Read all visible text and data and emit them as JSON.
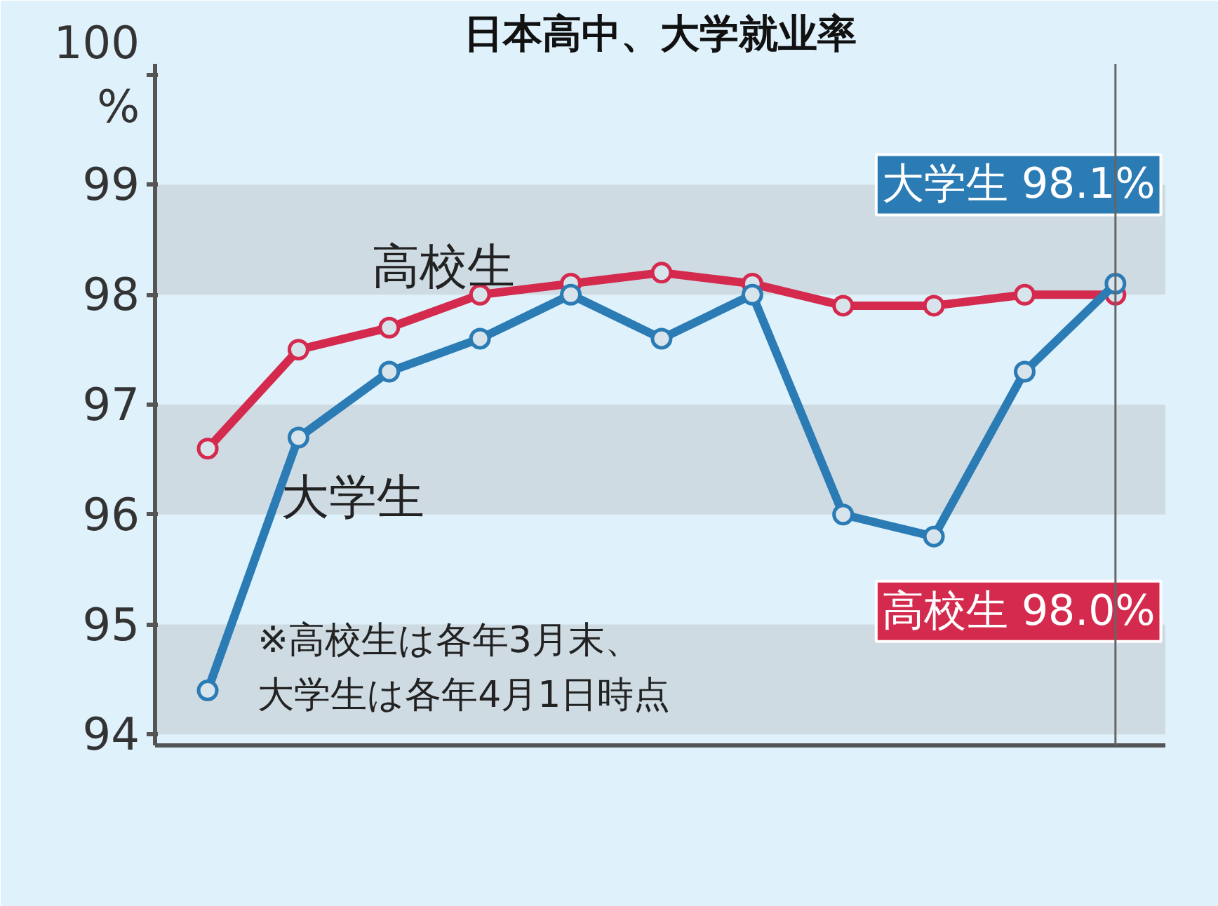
{
  "chart_data": {
    "type": "line",
    "title": "日本高中、大学就业率",
    "categories": [
      null,
      null,
      null,
      null,
      null,
      null,
      null,
      null,
      null,
      null,
      null
    ],
    "series": [
      {
        "name": "高校生",
        "color": "#d42a4e",
        "values": [
          96.6,
          97.5,
          97.7,
          98.0,
          98.1,
          98.2,
          98.1,
          97.9,
          97.9,
          98.0,
          98.0
        ]
      },
      {
        "name": "大学生",
        "color": "#2b7bb5",
        "values": [
          94.4,
          96.7,
          97.3,
          97.6,
          98.0,
          97.6,
          98.0,
          96.0,
          95.8,
          97.3,
          98.1
        ]
      }
    ],
    "ylim": [
      93.9,
      100.1
    ],
    "yticks": [
      94,
      95,
      96,
      97,
      98,
      99,
      {
        "value": 100,
        "label": "100\n%"
      }
    ],
    "bands": [
      {
        "axis": "y",
        "from": 94,
        "to": 95,
        "color": "#cfdbe3"
      },
      {
        "axis": "y",
        "from": 96,
        "to": 97,
        "color": "#cfdbe3"
      },
      {
        "axis": "y",
        "from": 98,
        "to": 99,
        "color": "#cfdbe3"
      }
    ],
    "annotations": [
      "※高校生は各年3月末、",
      "大学生は各年4月1日時点",
      "大学生 98.1%",
      "高校生 98.0%"
    ],
    "marker": "circle",
    "line_style": "solid",
    "tick_labels": "y",
    "grid": false
  }
}
